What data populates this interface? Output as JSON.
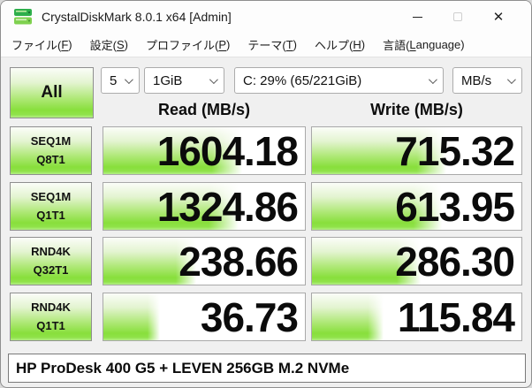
{
  "window": {
    "title": "CrystalDiskMark 8.0.1 x64 [Admin]"
  },
  "icons": {
    "app-icon": "green-disk",
    "minimize-icon": "thin-dash",
    "maximize-icon": "outline-square",
    "close-icon": "✕",
    "chevron-down-icon": "⌄"
  },
  "menu": {
    "items": [
      {
        "pre": "ファイル(",
        "m": "F",
        "post": ")"
      },
      {
        "pre": "設定(",
        "m": "S",
        "post": ")"
      },
      {
        "pre": "プロファイル(",
        "m": "P",
        "post": ")"
      },
      {
        "pre": "テーマ(",
        "m": "T",
        "post": ")"
      },
      {
        "pre": "ヘルプ(",
        "m": "H",
        "post": ")"
      },
      {
        "pre": "言語(",
        "m": "L",
        "post": "anguage)"
      }
    ]
  },
  "toolbar": {
    "all_button": "All",
    "test_count": "5",
    "test_size": "1GiB",
    "target_drive": "C: 29% (65/221GiB)",
    "unit": "MB/s"
  },
  "columns": {
    "read": "Read (MB/s)",
    "write": "Write (MB/s)"
  },
  "rows": [
    {
      "test": "SEQ1M",
      "qt": "Q8T1",
      "read": "1604.18",
      "write": "715.32",
      "read_pct": "69",
      "write_pct": "64"
    },
    {
      "test": "SEQ1M",
      "qt": "Q1T1",
      "read": "1324.86",
      "write": "613.95",
      "read_pct": "67",
      "write_pct": "62"
    },
    {
      "test": "RND4K",
      "qt": "Q32T1",
      "read": "238.66",
      "write": "286.30",
      "read_pct": "46",
      "write_pct": "52"
    },
    {
      "test": "RND4K",
      "qt": "Q1T1",
      "read": "36.73",
      "write": "115.84",
      "read_pct": "28",
      "write_pct": "34"
    }
  ],
  "footer": {
    "comment": "HP ProDesk 400 G5 + LEVEN 256GB M.2 NVMe"
  },
  "colors": {
    "bar_green": "#88df3c",
    "window_bg": "#f0f0f0",
    "cell_border": "#a9a9a9"
  }
}
